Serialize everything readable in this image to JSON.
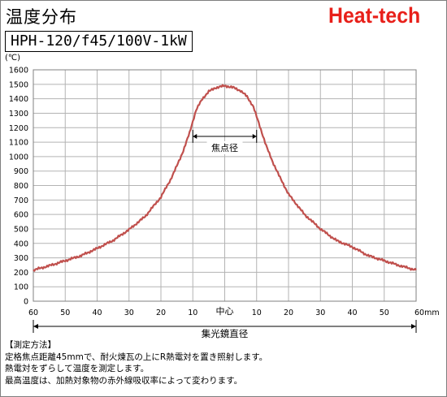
{
  "title": "温度分布",
  "brand": "Heat-tech",
  "model": "HPH-120/f45/100V-1kW",
  "colors": {
    "series": "#c0504d",
    "brand": "#e8201a",
    "grid": "#b3b3b3"
  },
  "chart_data": {
    "type": "line",
    "ylabel": "(℃)",
    "ylim": [
      0,
      1600
    ],
    "yticks": [
      0,
      100,
      200,
      300,
      400,
      500,
      600,
      700,
      800,
      900,
      1000,
      1100,
      1200,
      1300,
      1400,
      1500,
      1600
    ],
    "xlim": [
      -60,
      60
    ],
    "xticks": [
      -60,
      -50,
      -40,
      -30,
      -20,
      -10,
      0,
      10,
      20,
      30,
      40,
      50,
      60
    ],
    "xtick_labels": [
      "60",
      "50",
      "40",
      "30",
      "20",
      "10",
      "",
      "10",
      "20",
      "30",
      "40",
      "50",
      "60mm"
    ],
    "center_label": "中心",
    "xlabel": "集光鏡直径",
    "focal_annotation": {
      "label": "焦点径",
      "from": -10,
      "to": 10,
      "y": 1140
    },
    "grid": true,
    "series": [
      {
        "x": [
          -60,
          -55,
          -50,
          -45,
          -40,
          -35,
          -30,
          -25,
          -20,
          -17,
          -15,
          -13,
          -11,
          -10,
          -9,
          -7,
          -5,
          -3,
          -1,
          0,
          1,
          3,
          5,
          7,
          9,
          10,
          11,
          13,
          15,
          17,
          20,
          25,
          30,
          35,
          40,
          45,
          50,
          55,
          60
        ],
        "values": [
          215,
          245,
          280,
          315,
          365,
          420,
          495,
          585,
          720,
          840,
          935,
          1040,
          1165,
          1245,
          1320,
          1400,
          1450,
          1475,
          1485,
          1490,
          1485,
          1475,
          1455,
          1415,
          1345,
          1275,
          1210,
          1075,
          965,
          870,
          740,
          600,
          500,
          420,
          375,
          315,
          280,
          245,
          215
        ]
      }
    ]
  },
  "notes": {
    "heading": "【測定方法】",
    "lines": [
      "定格焦点距離45mmで、耐火煉瓦の上にR熱電対を置き照射します。",
      "熱電対をずらして温度を測定します。",
      "最高温度は、加熱対象物の赤外線吸収率によって変わります。"
    ]
  }
}
